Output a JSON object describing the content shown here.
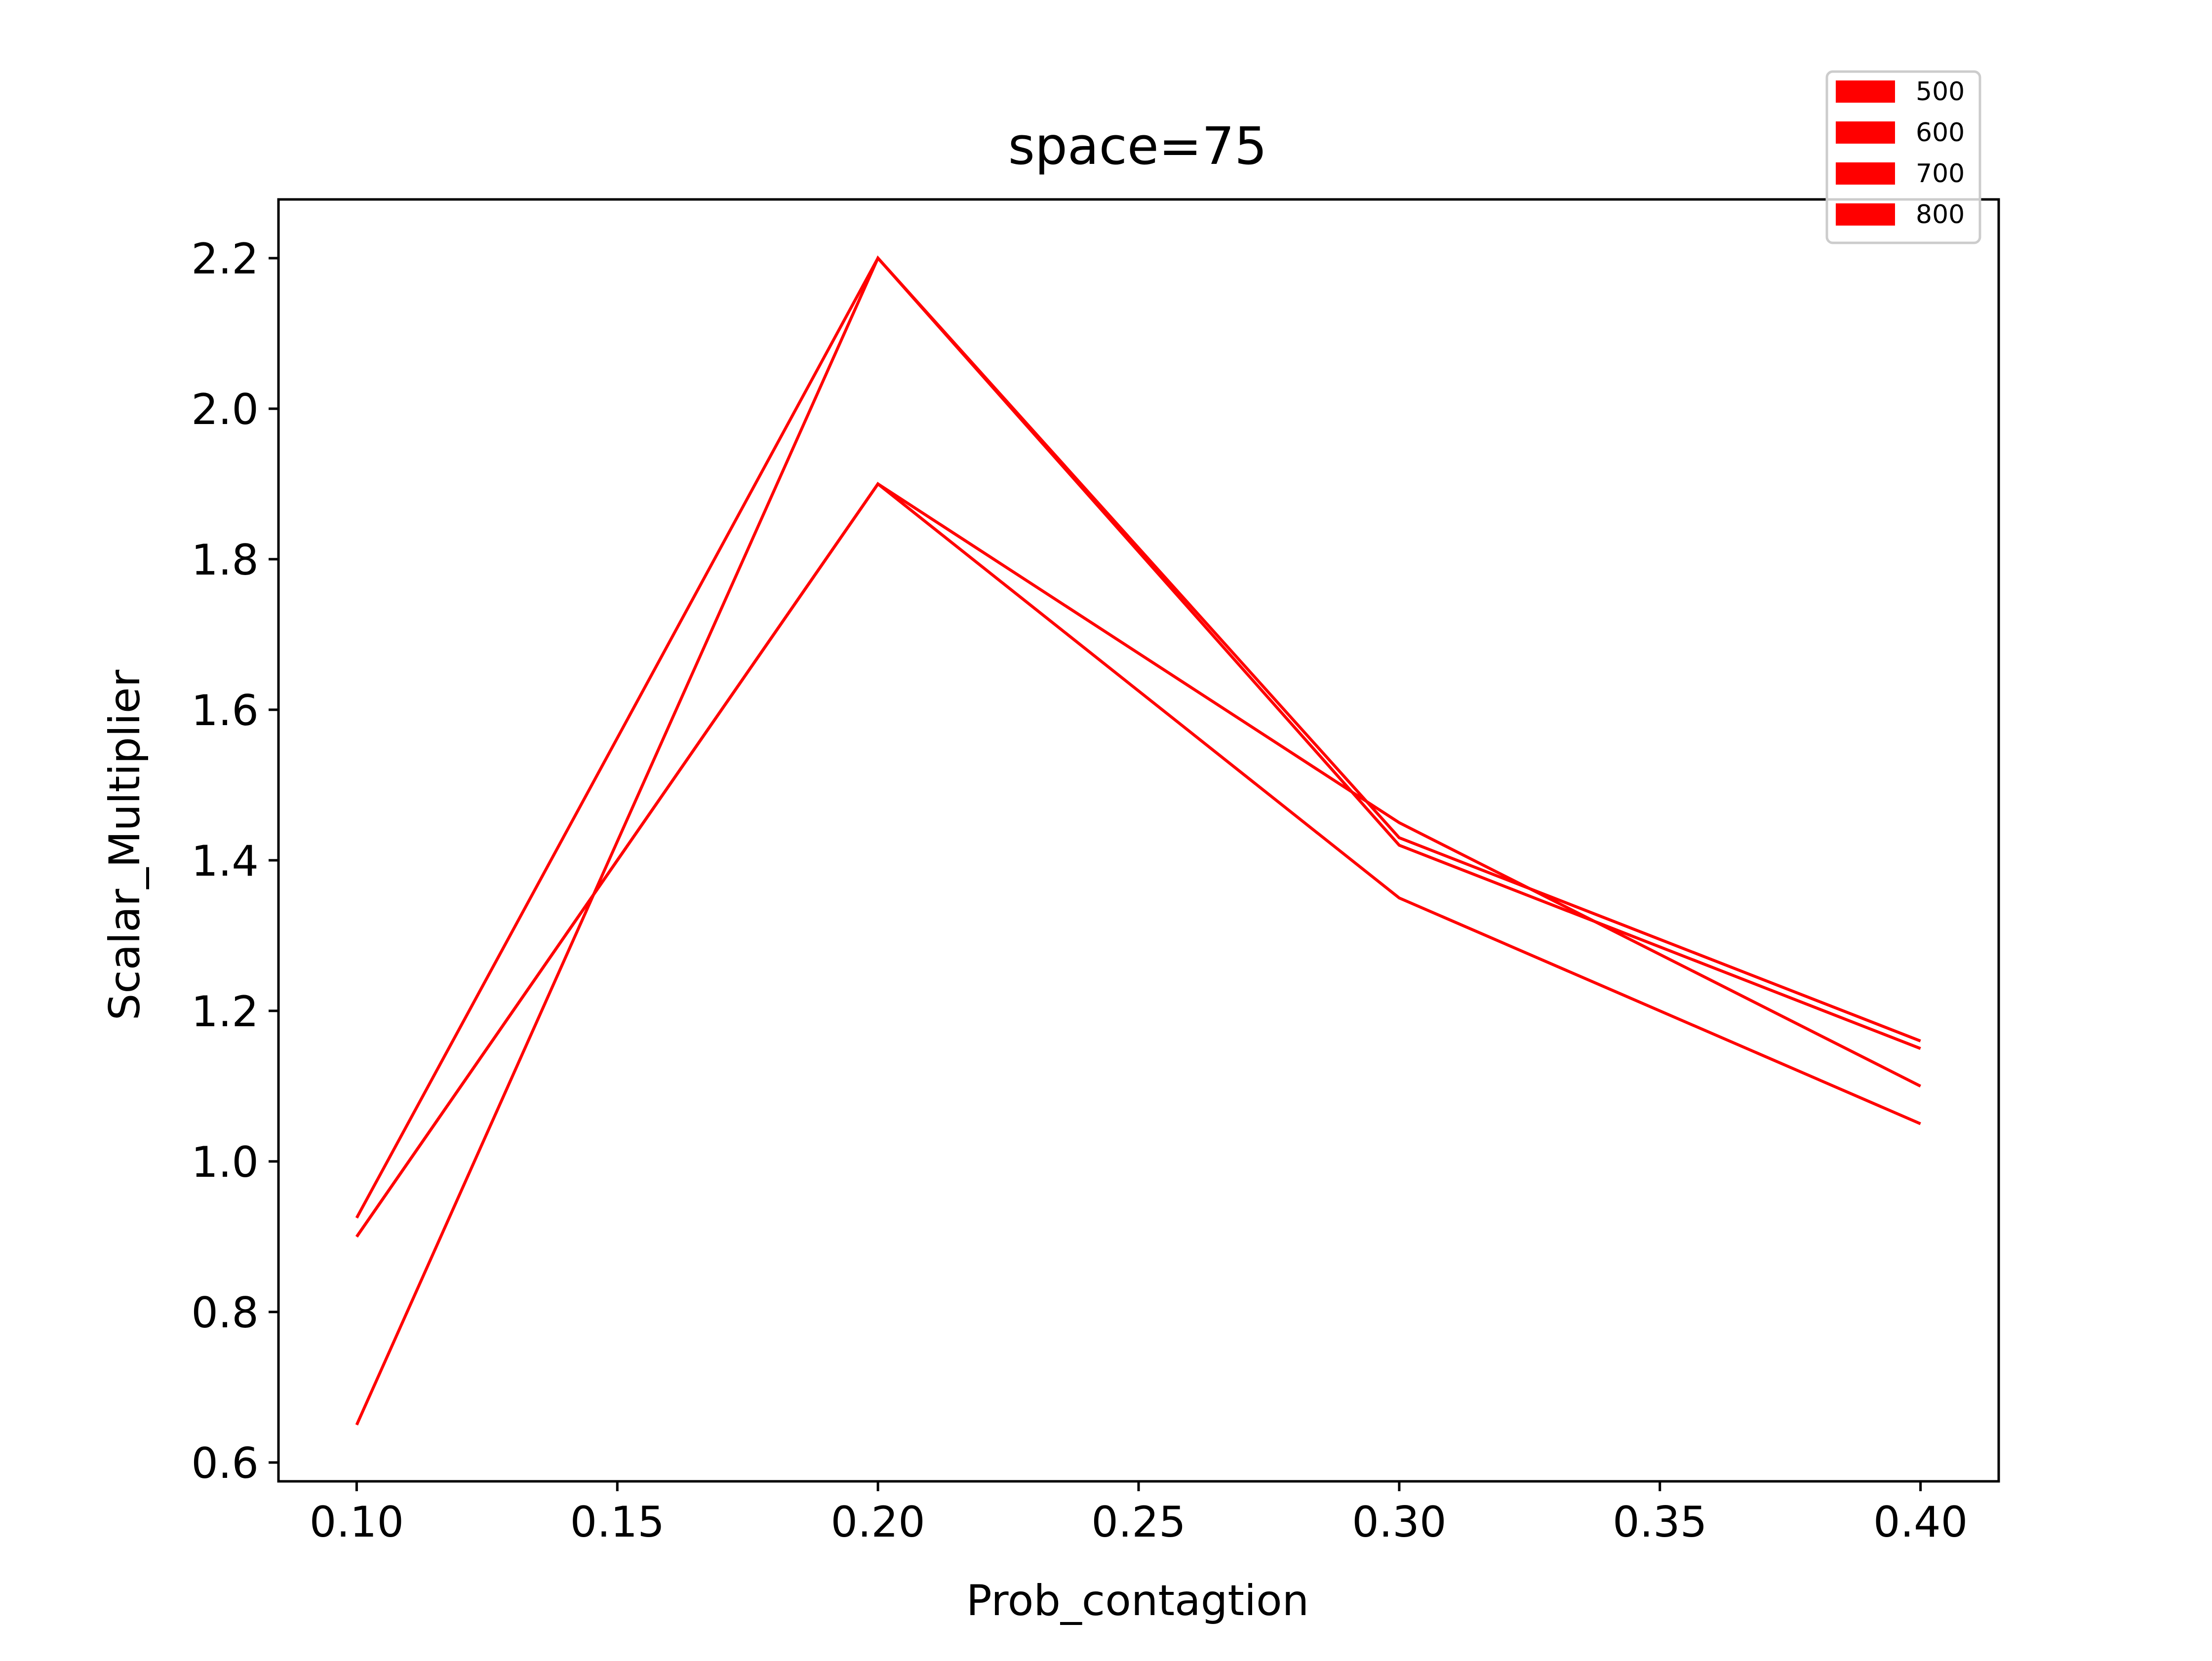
{
  "chart_data": {
    "type": "line",
    "title": "space=75",
    "xlabel": "Prob_contagtion",
    "ylabel": "Scalar_Multiplier",
    "x": [
      0.1,
      0.2,
      0.3,
      0.4
    ],
    "xticks": [
      "0.10",
      "0.15",
      "0.20",
      "0.25",
      "0.30",
      "0.35",
      "0.40"
    ],
    "yticks": [
      "0.6",
      "0.8",
      "1.0",
      "1.2",
      "1.4",
      "1.6",
      "1.8",
      "2.0",
      "2.2"
    ],
    "xlim": [
      0.085,
      0.415
    ],
    "ylim": [
      0.575,
      2.278
    ],
    "grid": false,
    "legend_position": "upper-right, above plot",
    "series": [
      {
        "name": "500",
        "color": "#ff0000",
        "values": [
          0.925,
          2.2,
          1.42,
          1.15
        ]
      },
      {
        "name": "600",
        "color": "#ff0000",
        "values": [
          0.65,
          2.2,
          1.43,
          1.16
        ]
      },
      {
        "name": "700",
        "color": "#ff0000",
        "values": [
          0.9,
          1.9,
          1.45,
          1.1
        ]
      },
      {
        "name": "800",
        "color": "#ff0000",
        "values": [
          0.9,
          1.9,
          1.35,
          1.05
        ]
      }
    ]
  }
}
